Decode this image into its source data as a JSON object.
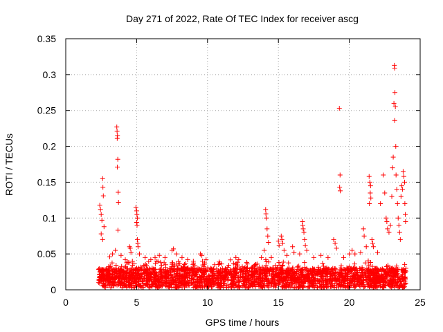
{
  "chart_data": {
    "type": "scatter",
    "title": "Day 271 of 2022, Rate Of TEC Index for receiver ascg",
    "xlabel": "GPS time / hours",
    "ylabel": "ROTI / TECUs",
    "xlim": [
      0,
      25
    ],
    "ylim": [
      0,
      0.35
    ],
    "xticks": [
      0,
      5,
      10,
      15,
      20,
      25
    ],
    "xtick_labels": [
      "0",
      "5",
      "10",
      "15",
      "20",
      "25"
    ],
    "yticks": [
      0,
      0.05,
      0.1,
      0.15,
      0.2,
      0.25,
      0.3,
      0.35
    ],
    "ytick_labels": [
      "0",
      "0.05",
      "0.1",
      "0.15",
      "0.2",
      "0.25",
      "0.3",
      "0.35"
    ],
    "grid": true,
    "marker": "+",
    "color": "#ff0000",
    "x_data_range": [
      2.3,
      24.0
    ],
    "series": [
      {
        "values": [
          [
            2.4,
            0.118
          ],
          [
            2.45,
            0.112
          ],
          [
            2.5,
            0.105
          ],
          [
            2.55,
            0.097
          ],
          [
            2.6,
            0.155
          ],
          [
            2.62,
            0.143
          ],
          [
            2.65,
            0.131
          ],
          [
            2.7,
            0.088
          ],
          [
            2.5,
            0.078
          ],
          [
            2.6,
            0.07
          ],
          [
            3.6,
            0.227
          ],
          [
            3.62,
            0.221
          ],
          [
            3.65,
            0.215
          ],
          [
            3.63,
            0.211
          ],
          [
            3.67,
            0.182
          ],
          [
            3.64,
            0.171
          ],
          [
            3.7,
            0.136
          ],
          [
            3.72,
            0.122
          ],
          [
            3.68,
            0.083
          ],
          [
            3.5,
            0.055
          ],
          [
            3.3,
            0.05
          ],
          [
            3.1,
            0.046
          ],
          [
            3.9,
            0.048
          ],
          [
            4.2,
            0.042
          ],
          [
            4.4,
            0.038
          ],
          [
            4.5,
            0.06
          ],
          [
            4.55,
            0.058
          ],
          [
            4.6,
            0.052
          ],
          [
            4.7,
            0.04
          ],
          [
            4.95,
            0.115
          ],
          [
            5.0,
            0.11
          ],
          [
            5.02,
            0.105
          ],
          [
            5.05,
            0.1
          ],
          [
            5.0,
            0.094
          ],
          [
            5.03,
            0.09
          ],
          [
            5.05,
            0.07
          ],
          [
            5.08,
            0.065
          ],
          [
            5.1,
            0.06
          ],
          [
            5.2,
            0.05
          ],
          [
            5.6,
            0.045
          ],
          [
            6.0,
            0.042
          ],
          [
            6.3,
            0.045
          ],
          [
            6.6,
            0.048
          ],
          [
            7.0,
            0.045
          ],
          [
            7.5,
            0.055
          ],
          [
            7.6,
            0.057
          ],
          [
            7.8,
            0.05
          ],
          [
            8.2,
            0.045
          ],
          [
            8.6,
            0.042
          ],
          [
            9.0,
            0.04
          ],
          [
            9.5,
            0.05
          ],
          [
            9.6,
            0.048
          ],
          [
            9.9,
            0.042
          ],
          [
            10.5,
            0.035
          ],
          [
            11.0,
            0.036
          ],
          [
            11.5,
            0.034
          ],
          [
            12.0,
            0.045
          ],
          [
            12.2,
            0.042
          ],
          [
            12.8,
            0.036
          ],
          [
            13.3,
            0.034
          ],
          [
            13.8,
            0.045
          ],
          [
            14.1,
            0.112
          ],
          [
            14.12,
            0.106
          ],
          [
            14.15,
            0.1
          ],
          [
            14.2,
            0.085
          ],
          [
            14.25,
            0.075
          ],
          [
            14.3,
            0.066
          ],
          [
            14.0,
            0.055
          ],
          [
            14.5,
            0.045
          ],
          [
            15.0,
            0.068
          ],
          [
            15.05,
            0.062
          ],
          [
            15.2,
            0.075
          ],
          [
            15.25,
            0.07
          ],
          [
            15.3,
            0.065
          ],
          [
            15.4,
            0.055
          ],
          [
            15.6,
            0.048
          ],
          [
            16.0,
            0.06
          ],
          [
            16.1,
            0.052
          ],
          [
            16.5,
            0.05
          ],
          [
            16.7,
            0.095
          ],
          [
            16.72,
            0.09
          ],
          [
            16.75,
            0.085
          ],
          [
            16.8,
            0.08
          ],
          [
            16.85,
            0.07
          ],
          [
            16.9,
            0.062
          ],
          [
            17.0,
            0.055
          ],
          [
            17.5,
            0.045
          ],
          [
            18.0,
            0.048
          ],
          [
            18.5,
            0.045
          ],
          [
            18.9,
            0.07
          ],
          [
            19.0,
            0.065
          ],
          [
            19.1,
            0.058
          ],
          [
            19.3,
            0.253
          ],
          [
            19.35,
            0.16
          ],
          [
            19.32,
            0.143
          ],
          [
            19.36,
            0.138
          ],
          [
            19.6,
            0.045
          ],
          [
            20.0,
            0.05
          ],
          [
            20.2,
            0.055
          ],
          [
            20.4,
            0.05
          ],
          [
            20.8,
            0.052
          ],
          [
            21.0,
            0.085
          ],
          [
            21.05,
            0.075
          ],
          [
            21.2,
            0.06
          ],
          [
            21.4,
            0.158
          ],
          [
            21.45,
            0.15
          ],
          [
            21.5,
            0.145
          ],
          [
            21.48,
            0.135
          ],
          [
            21.52,
            0.128
          ],
          [
            21.42,
            0.12
          ],
          [
            21.6,
            0.07
          ],
          [
            21.65,
            0.065
          ],
          [
            21.7,
            0.06
          ],
          [
            22.0,
            0.052
          ],
          [
            22.2,
            0.12
          ],
          [
            22.4,
            0.16
          ],
          [
            22.5,
            0.135
          ],
          [
            22.6,
            0.1
          ],
          [
            22.65,
            0.095
          ],
          [
            22.7,
            0.085
          ],
          [
            22.8,
            0.08
          ],
          [
            22.9,
            0.09
          ],
          [
            23.0,
            0.13
          ],
          [
            23.05,
            0.17
          ],
          [
            23.1,
            0.185
          ],
          [
            23.15,
            0.26
          ],
          [
            23.18,
            0.313
          ],
          [
            23.2,
            0.309
          ],
          [
            23.22,
            0.275
          ],
          [
            23.25,
            0.255
          ],
          [
            23.2,
            0.236
          ],
          [
            23.28,
            0.2
          ],
          [
            23.3,
            0.16
          ],
          [
            23.35,
            0.14
          ],
          [
            23.4,
            0.12
          ],
          [
            23.45,
            0.1
          ],
          [
            23.5,
            0.09
          ],
          [
            23.55,
            0.08
          ],
          [
            23.6,
            0.07
          ],
          [
            23.65,
            0.13
          ],
          [
            23.7,
            0.145
          ],
          [
            23.75,
            0.14
          ],
          [
            23.8,
            0.165
          ],
          [
            23.85,
            0.158
          ],
          [
            23.9,
            0.15
          ],
          [
            23.92,
            0.12
          ],
          [
            23.95,
            0.105
          ],
          [
            23.97,
            0.095
          ],
          [
            24.0,
            0.03
          ]
        ]
      }
    ],
    "dense_band": {
      "x_range": [
        2.3,
        24.0
      ],
      "y_base_range": [
        0.003,
        0.03
      ]
    }
  }
}
